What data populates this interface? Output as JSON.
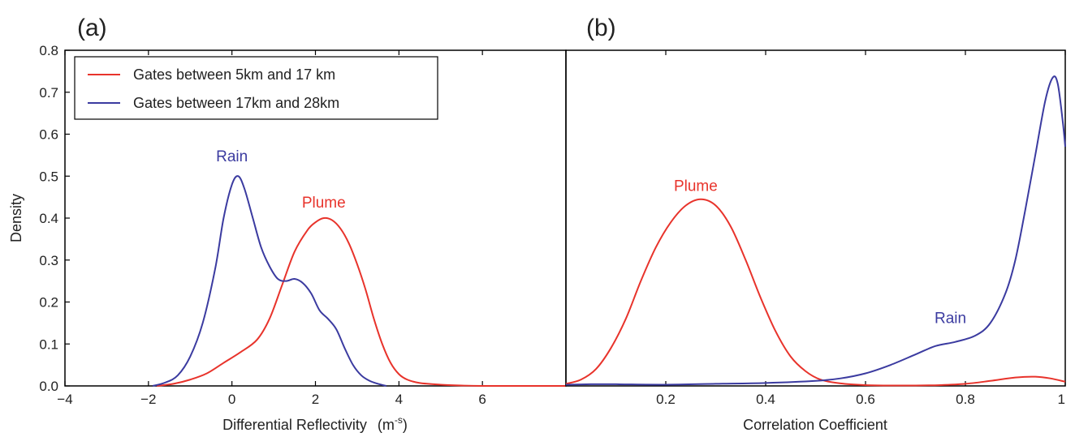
{
  "chart_data": [
    {
      "panel_label": "(a)",
      "type": "line",
      "xlabel": "Differential Reflectivity",
      "xlabel_unit_base": "(m",
      "xlabel_unit_sup": "-s",
      "xlabel_unit_close": ")",
      "ylabel": "Density",
      "xlim": [
        -4,
        8
      ],
      "ylim": [
        0,
        0.8
      ],
      "xticks": [
        -4,
        -2,
        0,
        2,
        4,
        6
      ],
      "xtick_labels": [
        "−4",
        "−2",
        "0",
        "2",
        "4",
        "6"
      ],
      "yticks": [
        0.0,
        0.1,
        0.2,
        0.3,
        0.4,
        0.5,
        0.6,
        0.7,
        0.8
      ],
      "ytick_labels": [
        "0.0",
        "0.1",
        "0.2",
        "0.3",
        "0.4",
        "0.5",
        "0.6",
        "0.7",
        "0.8"
      ],
      "grid": false,
      "legend_position": "top-left",
      "legend": [
        {
          "label": "Gates between 5km and 17 km",
          "color": "#e8332b"
        },
        {
          "label": "Gates between 17km and 28km",
          "color": "#3b3ba0"
        }
      ],
      "annotations": [
        {
          "text": "Rain",
          "x": 0.0,
          "y": 0.535,
          "color": "#3b3ba0"
        },
        {
          "text": "Plume",
          "x": 2.2,
          "y": 0.425,
          "color": "#e8332b"
        }
      ],
      "series": [
        {
          "color": "#e8332b",
          "x": [
            -1.8,
            -1.4,
            -1.0,
            -0.6,
            -0.2,
            0.2,
            0.6,
            0.9,
            1.2,
            1.5,
            1.8,
            2.0,
            2.2,
            2.4,
            2.6,
            2.8,
            3.0,
            3.2,
            3.4,
            3.6,
            3.8,
            4.0,
            4.2,
            4.5,
            5.0,
            5.5,
            6.0,
            7.0,
            8.0
          ],
          "y": [
            0.0,
            0.005,
            0.015,
            0.03,
            0.055,
            0.08,
            0.11,
            0.16,
            0.24,
            0.32,
            0.37,
            0.39,
            0.4,
            0.395,
            0.375,
            0.34,
            0.29,
            0.23,
            0.16,
            0.1,
            0.055,
            0.028,
            0.015,
            0.007,
            0.003,
            0.001,
            0.0,
            0.0,
            0.0
          ]
        },
        {
          "color": "#3b3ba0",
          "x": [
            -1.9,
            -1.6,
            -1.3,
            -1.0,
            -0.7,
            -0.4,
            -0.2,
            0.0,
            0.15,
            0.3,
            0.5,
            0.7,
            0.9,
            1.1,
            1.3,
            1.5,
            1.7,
            1.9,
            2.1,
            2.3,
            2.5,
            2.7,
            2.9,
            3.1,
            3.3,
            3.5,
            3.7
          ],
          "y": [
            0.0,
            0.008,
            0.025,
            0.07,
            0.15,
            0.28,
            0.4,
            0.48,
            0.5,
            0.47,
            0.4,
            0.33,
            0.285,
            0.255,
            0.25,
            0.255,
            0.245,
            0.22,
            0.18,
            0.16,
            0.135,
            0.09,
            0.05,
            0.025,
            0.012,
            0.005,
            0.0
          ]
        }
      ]
    },
    {
      "panel_label": "(b)",
      "type": "line",
      "xlabel": "Correlation Coefficient",
      "xlim": [
        0,
        1
      ],
      "ylim": [
        0,
        0.8
      ],
      "xticks": [
        0.2,
        0.4,
        0.6,
        0.8,
        1.0
      ],
      "xtick_labels": [
        "0.2",
        "0.4",
        "0.6",
        "0.8",
        "1"
      ],
      "grid": false,
      "annotations": [
        {
          "text": "Plume",
          "x": 0.26,
          "y": 0.465,
          "color": "#e8332b"
        },
        {
          "text": "Rain",
          "x": 0.77,
          "y": 0.15,
          "color": "#3b3ba0"
        }
      ],
      "series": [
        {
          "color": "#e8332b",
          "x": [
            0.0,
            0.03,
            0.06,
            0.09,
            0.12,
            0.15,
            0.18,
            0.21,
            0.24,
            0.27,
            0.3,
            0.33,
            0.36,
            0.39,
            0.42,
            0.45,
            0.48,
            0.51,
            0.55,
            0.6,
            0.65,
            0.7,
            0.75,
            0.8,
            0.85,
            0.9,
            0.94,
            0.97,
            1.0
          ],
          "y": [
            0.005,
            0.015,
            0.04,
            0.09,
            0.16,
            0.25,
            0.33,
            0.39,
            0.43,
            0.445,
            0.43,
            0.38,
            0.3,
            0.21,
            0.13,
            0.07,
            0.035,
            0.015,
            0.006,
            0.002,
            0.001,
            0.001,
            0.002,
            0.005,
            0.012,
            0.02,
            0.022,
            0.018,
            0.01
          ]
        },
        {
          "color": "#3b3ba0",
          "x": [
            0.0,
            0.05,
            0.1,
            0.2,
            0.3,
            0.4,
            0.5,
            0.55,
            0.6,
            0.65,
            0.7,
            0.74,
            0.78,
            0.82,
            0.85,
            0.88,
            0.9,
            0.92,
            0.94,
            0.96,
            0.975,
            0.985,
            0.995,
            1.0
          ],
          "y": [
            0.003,
            0.004,
            0.004,
            0.003,
            0.005,
            0.007,
            0.012,
            0.018,
            0.03,
            0.05,
            0.075,
            0.095,
            0.105,
            0.12,
            0.15,
            0.22,
            0.3,
            0.42,
            0.55,
            0.68,
            0.735,
            0.72,
            0.63,
            0.57
          ]
        }
      ]
    }
  ]
}
